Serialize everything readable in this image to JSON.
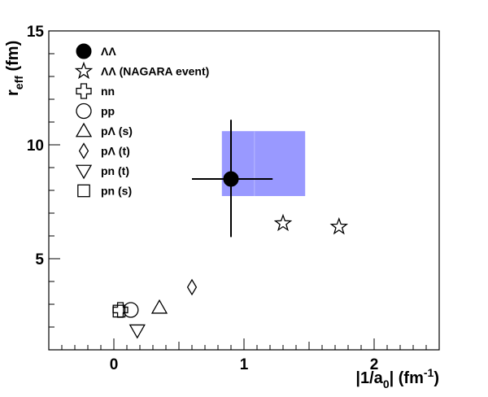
{
  "chart_data": {
    "type": "scatter",
    "xlabel": {
      "main": "|1/a",
      "sub": "0",
      "rest": "| (fm",
      "sup": "-1",
      "end": ")"
    },
    "ylabel": {
      "main": "r",
      "sub": "eff",
      "rest": " (fm)"
    },
    "xlim": [
      -0.5,
      2.5
    ],
    "ylim": [
      1,
      15
    ],
    "x_ticks": [
      0,
      1,
      2
    ],
    "x_tick_labels": [
      "0",
      "1",
      "2"
    ],
    "y_ticks": [
      5,
      10,
      15
    ],
    "y_tick_labels": [
      "5",
      "10",
      "15"
    ],
    "grid": false,
    "legend_position": "top-left",
    "band": {
      "x": [
        0.83,
        1.47
      ],
      "y": [
        7.75,
        10.6
      ],
      "color": "#9999ff",
      "edge_x": 1.08
    },
    "series": [
      {
        "name": "ΛΛ",
        "marker": "filled-circle",
        "points": [
          {
            "x": 0.9,
            "y": 8.5,
            "xerr": [
              0.3,
              0.32
            ],
            "yerr": [
              2.55,
              2.6
            ]
          }
        ]
      },
      {
        "name": "ΛΛ (NAGARA event)",
        "marker": "open-star",
        "points": [
          {
            "x": 1.3,
            "y": 6.55
          },
          {
            "x": 1.73,
            "y": 6.4
          }
        ]
      },
      {
        "name": "nn",
        "marker": "open-cross",
        "points": [
          {
            "x": 0.05,
            "y": 2.75
          }
        ]
      },
      {
        "name": "pp",
        "marker": "open-circle",
        "points": [
          {
            "x": 0.13,
            "y": 2.75
          }
        ]
      },
      {
        "name": "pΛ (s)",
        "marker": "open-triangle-up",
        "points": [
          {
            "x": 0.35,
            "y": 2.85
          }
        ]
      },
      {
        "name": "pΛ (t)",
        "marker": "open-diamond",
        "points": [
          {
            "x": 0.6,
            "y": 3.75
          }
        ]
      },
      {
        "name": "pn (t)",
        "marker": "open-triangle-down",
        "points": [
          {
            "x": 0.18,
            "y": 1.85
          }
        ]
      },
      {
        "name": "pn (s)",
        "marker": "open-square",
        "points": [
          {
            "x": 0.04,
            "y": 2.7
          }
        ]
      }
    ]
  }
}
